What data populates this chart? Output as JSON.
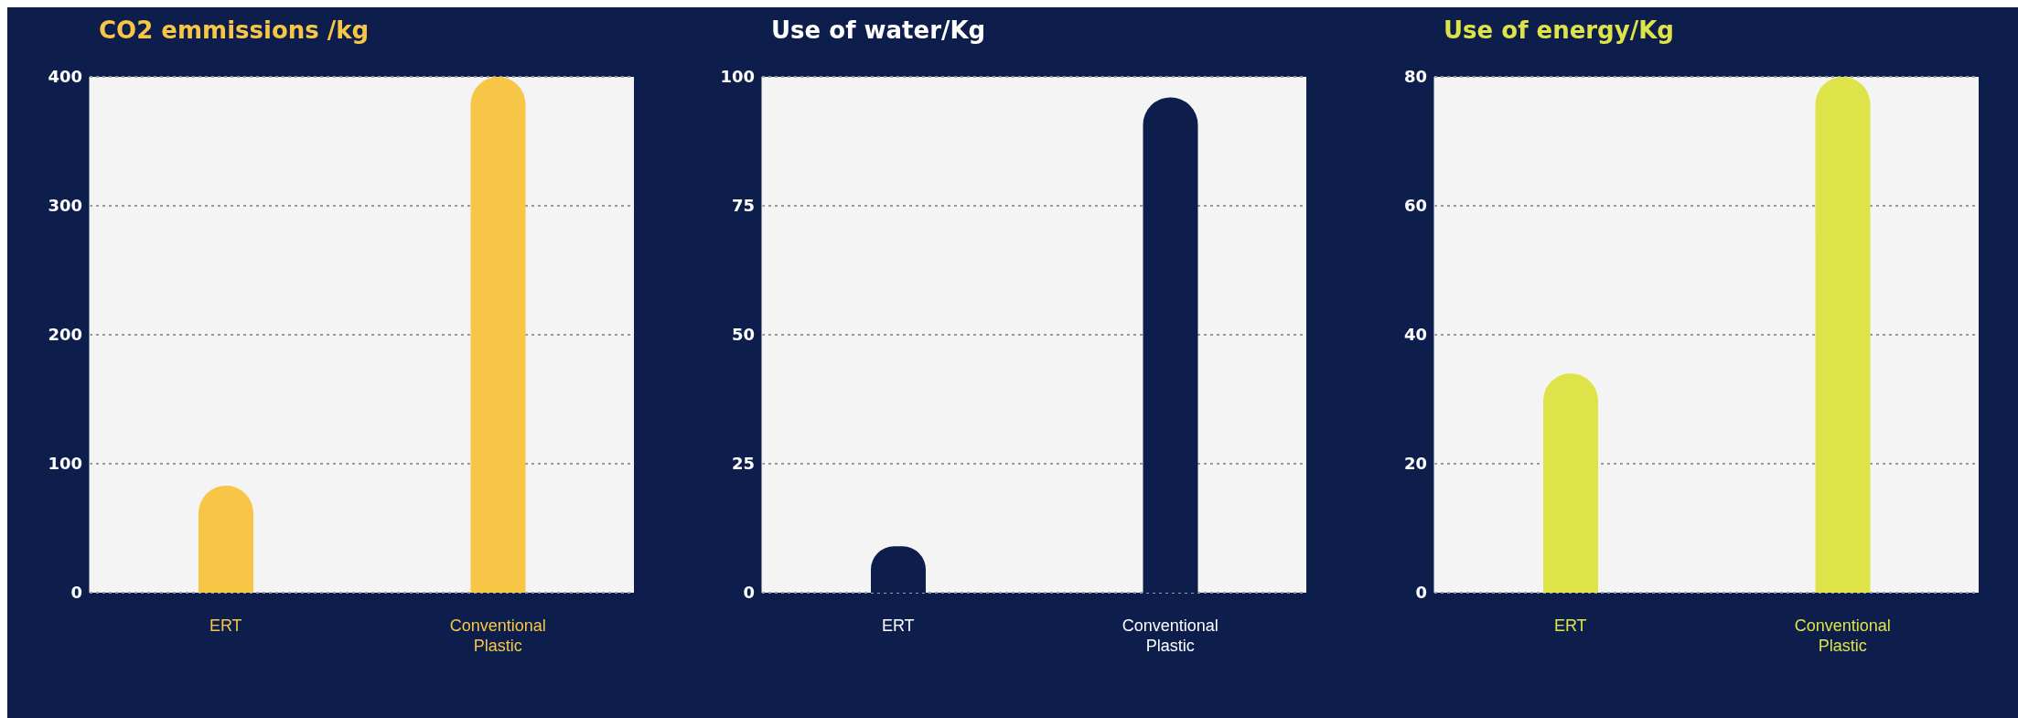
{
  "chart_data": [
    {
      "type": "bar",
      "title": "CO2 emmissions /kg",
      "categories": [
        "ERT",
        "Conventional Plastic"
      ],
      "values": [
        83,
        400
      ],
      "color": "#f7c646",
      "ylim": [
        0,
        400
      ],
      "yticks": [
        0,
        100,
        200,
        300,
        400
      ],
      "grid": "y"
    },
    {
      "type": "bar",
      "title": "Use of water/Kg",
      "categories": [
        "ERT",
        "Conventional Plastic"
      ],
      "values": [
        9,
        96
      ],
      "color": "#0d1e4c",
      "ylim": [
        0,
        100
      ],
      "yticks": [
        0,
        25,
        50,
        75,
        100
      ],
      "grid": "y"
    },
    {
      "type": "bar",
      "title": "Use of energy/Kg",
      "categories": [
        "ERT",
        "Conventional Plastic"
      ],
      "values": [
        34,
        80
      ],
      "color": "#dde348",
      "ylim": [
        0,
        80
      ],
      "yticks": [
        0,
        20,
        40,
        60,
        80
      ],
      "grid": "y"
    }
  ]
}
